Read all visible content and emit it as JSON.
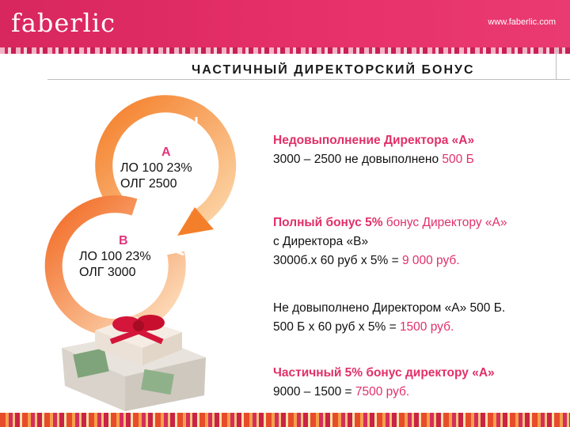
{
  "header": {
    "logo": "faberlic",
    "site_url": "www.faberlic.com"
  },
  "title": "ЧАСТИЧНЫЙ ДИРЕКТОРСКИЙ БОНУС",
  "diagram": {
    "node_a": {
      "letter": "А",
      "lo": "ЛО  100 23%",
      "olg": "ОЛГ  2500"
    },
    "node_b": {
      "letter": "В",
      "lo": "ЛО  100 23%",
      "olg": "ОЛГ 3000"
    }
  },
  "blocks": {
    "b1": {
      "heading": "Недовыполнение Директора «А»",
      "line_pre": "3000 – 2500 не довыполнено ",
      "line_val": "500 Б"
    },
    "b2": {
      "heading_bold": "Полный бонус 5%",
      "heading_rest": " бонус Директору «А»",
      "line1": "с  Директора «В»",
      "line2_pre": "3000б.х 60 руб х 5% = ",
      "line2_val": "9 000 руб."
    },
    "b3": {
      "line1": "Не довыполнено Директором «А» 500 Б.",
      "line2_pre": "500 Б х 60 руб х 5% = ",
      "line2_val": "1500 руб."
    },
    "b4": {
      "heading": "Частичный  5% бонус директору «А»",
      "line_pre": "9000 – 1500 = ",
      "line_val": "7500 руб."
    }
  },
  "colors": {
    "header": "#e0306a",
    "accent": "#e1306a",
    "ring": "#f7a246"
  }
}
